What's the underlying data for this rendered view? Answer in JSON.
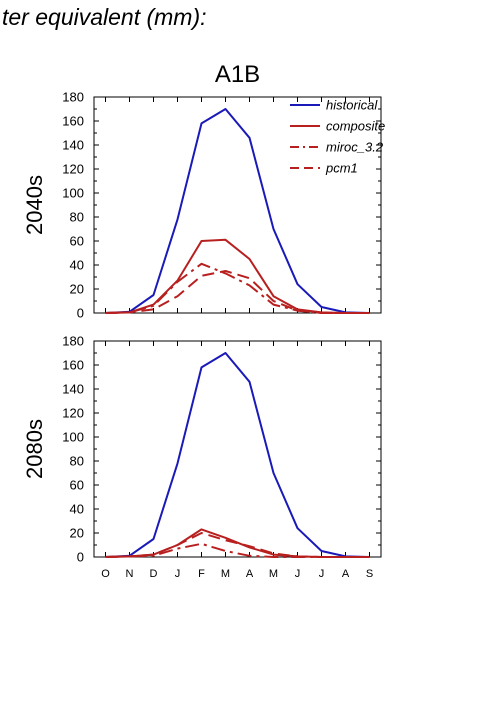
{
  "page": {
    "title": "ter equivalent (mm):"
  },
  "chart_data": [
    {
      "type": "line",
      "title": "A1B",
      "ylabel": "2040s",
      "xlabel": "",
      "categories": [
        "O",
        "N",
        "D",
        "J",
        "F",
        "M",
        "A",
        "M",
        "J",
        "J",
        "A",
        "S"
      ],
      "show_x_tick_labels": false,
      "ylim": [
        0,
        180
      ],
      "yticks": [
        0,
        20,
        40,
        60,
        80,
        100,
        120,
        140,
        160,
        180
      ],
      "grid": false,
      "legend": {
        "placement": "top-right"
      },
      "series": [
        {
          "name": "historical",
          "color": "#1a1ab8",
          "dash": "solid",
          "values": [
            0,
            1,
            15,
            78,
            158,
            170,
            146,
            70,
            24,
            5,
            0.5,
            0
          ]
        },
        {
          "name": "composite",
          "color": "#b82020",
          "dash": "solid",
          "values": [
            0,
            0.5,
            7,
            27,
            60,
            61,
            45,
            14,
            3,
            0.5,
            0,
            0
          ]
        },
        {
          "name": "miroc_3.2",
          "color": "#b82020",
          "dash": "dashdot",
          "values": [
            0,
            0.5,
            6,
            26,
            41,
            33,
            23,
            7,
            2,
            0,
            0,
            0
          ]
        },
        {
          "name": "pcm1",
          "color": "#b82020",
          "dash": "dash",
          "values": [
            0,
            0.5,
            3,
            14,
            31,
            35,
            29,
            10,
            2,
            0,
            0,
            0
          ]
        }
      ]
    },
    {
      "type": "line",
      "title": "",
      "ylabel": "2080s",
      "xlabel": "",
      "categories": [
        "O",
        "N",
        "D",
        "J",
        "F",
        "M",
        "A",
        "M",
        "J",
        "J",
        "A",
        "S"
      ],
      "show_x_tick_labels": true,
      "ylim": [
        0,
        180
      ],
      "yticks": [
        0,
        20,
        40,
        60,
        80,
        100,
        120,
        140,
        160,
        180
      ],
      "grid": false,
      "series": [
        {
          "name": "historical",
          "color": "#1a1ab8",
          "dash": "solid",
          "values": [
            0,
            1,
            15,
            78,
            158,
            170,
            146,
            70,
            24,
            5,
            0.5,
            0
          ]
        },
        {
          "name": "composite",
          "color": "#b82020",
          "dash": "solid",
          "values": [
            0,
            0.5,
            2,
            10,
            23,
            16,
            8,
            2,
            0.5,
            0,
            0,
            0
          ]
        },
        {
          "name": "miroc_3.2",
          "color": "#b82020",
          "dash": "dashdot",
          "values": [
            0,
            0.5,
            1,
            7,
            11,
            5,
            1,
            0,
            0,
            0,
            0,
            0
          ]
        },
        {
          "name": "pcm1",
          "color": "#b82020",
          "dash": "dash",
          "values": [
            0,
            0.5,
            2,
            10,
            20,
            14,
            9,
            3,
            0.5,
            0,
            0,
            0
          ]
        }
      ]
    }
  ]
}
